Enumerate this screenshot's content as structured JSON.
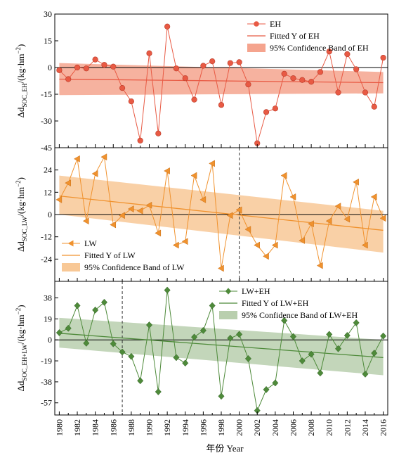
{
  "chart_data": [
    {
      "type": "line",
      "panel": "EH",
      "ylabel_main": "Δd",
      "ylabel_sub": "SOC_EH",
      "ylabel_rest": "/(kg·hm",
      "ylabel_exp": "−2",
      "ylabel_close": ")",
      "ylim": [
        -45,
        30
      ],
      "yticks": [
        "30",
        "15",
        "0",
        "-15",
        "-30",
        "-45"
      ],
      "ytick_values": [
        30,
        15,
        0,
        -15,
        -30,
        -45
      ],
      "marker": "circle",
      "color": "#e85a44",
      "band_color": "#f5a48e",
      "fit": {
        "start": -6.5,
        "end": -8.5
      },
      "band": {
        "upper_start": 2.5,
        "upper_end": -2.5,
        "lower_start": -15.5,
        "lower_end": -14.5
      },
      "vline_year": null,
      "legend": [
        "EH",
        "Fitted Y of EH",
        "95% Confidence Band of EH"
      ],
      "legend_position": "top-right",
      "x": [
        1980,
        1981,
        1982,
        1983,
        1984,
        1985,
        1986,
        1987,
        1988,
        1989,
        1990,
        1991,
        1992,
        1993,
        1994,
        1995,
        1996,
        1997,
        1998,
        1999,
        2000,
        2001,
        2002,
        2003,
        2004,
        2005,
        2006,
        2007,
        2008,
        2009,
        2010,
        2011,
        2012,
        2013,
        2014,
        2015,
        2016
      ],
      "values": [
        -1.5,
        -6.5,
        0,
        -0.5,
        4.5,
        1.5,
        0.5,
        -11.5,
        -19,
        -41,
        8,
        -37,
        23,
        -0.5,
        -6,
        -18,
        1,
        3.5,
        -21,
        2.5,
        3,
        -9.5,
        -42.5,
        -25,
        -23,
        -3.5,
        -6,
        -7,
        -8,
        -2.5,
        9,
        -14,
        7.5,
        -1,
        -14,
        -22,
        5.5
      ]
    },
    {
      "type": "line",
      "panel": "LW",
      "ylabel_main": "Δd",
      "ylabel_sub": "SOC_LW",
      "ylabel_rest": "/(kg·hm",
      "ylabel_exp": "−2",
      "ylabel_close": ")",
      "ylim": [
        -36,
        36
      ],
      "yticks": [
        "24",
        "12",
        "0",
        "-12",
        "-24"
      ],
      "ytick_values": [
        24,
        12,
        0,
        -12,
        -24
      ],
      "marker": "triangle-left",
      "color": "#f0922e",
      "band_color": "#f8c896",
      "fit": {
        "start": 10,
        "end": -8.5
      },
      "band": {
        "upper_start": 21,
        "upper_end": 2,
        "lower_start": 0,
        "lower_end": -20.5
      },
      "vline_year": 2000,
      "legend": [
        "LW",
        "Fitted Y of LW",
        "95% Confidence Band of LW"
      ],
      "legend_position": "bottom-left",
      "x": [
        1980,
        1981,
        1982,
        1983,
        1984,
        1985,
        1986,
        1987,
        1988,
        1989,
        1990,
        1991,
        1992,
        1993,
        1994,
        1995,
        1996,
        1997,
        1998,
        1999,
        2000,
        2001,
        2002,
        2003,
        2004,
        2005,
        2006,
        2007,
        2008,
        2009,
        2010,
        2011,
        2012,
        2013,
        2014,
        2015,
        2016
      ],
      "values": [
        8,
        17,
        30,
        -3.5,
        22,
        31,
        -5.5,
        -0.5,
        3,
        2,
        5,
        -10,
        23.5,
        -16.5,
        -14.5,
        21,
        8,
        27.5,
        -29,
        -0.5,
        2.5,
        -8,
        -16.5,
        -22.5,
        -16.5,
        21,
        9.5,
        -14,
        -5,
        -27.5,
        -3.5,
        4.5,
        -2.5,
        17.5,
        -16.5,
        9.5,
        -2
      ]
    },
    {
      "type": "line",
      "panel": "LW+EH",
      "ylabel_main": "Δd",
      "ylabel_sub": "SOC_EH+LW",
      "ylabel_rest": "/(kg·hm",
      "ylabel_exp": "−2",
      "ylabel_close": ")",
      "ylim": [
        -68,
        53
      ],
      "yticks": [
        "38",
        "19",
        "0",
        "-19",
        "-38",
        "-57"
      ],
      "ytick_values": [
        38,
        19,
        0,
        -19,
        -38,
        -57
      ],
      "marker": "diamond",
      "color": "#4e8a3a",
      "band_color": "#b9cfae",
      "fit": {
        "start": 6,
        "end": -16
      },
      "band": {
        "upper_start": 20,
        "upper_end": 0,
        "lower_start": -7,
        "lower_end": -32
      },
      "vline_year": 1987,
      "legend": [
        "LW+EH",
        "Fitted Y of LW+EH",
        "95% Confidence Band of LW+EH"
      ],
      "legend_position": "top-right",
      "x": [
        1980,
        1981,
        1982,
        1983,
        1984,
        1985,
        1986,
        1987,
        1988,
        1989,
        1990,
        1991,
        1992,
        1993,
        1994,
        1995,
        1996,
        1997,
        1998,
        1999,
        2000,
        2001,
        2002,
        2003,
        2004,
        2005,
        2006,
        2007,
        2008,
        2009,
        2010,
        2011,
        2012,
        2013,
        2014,
        2015,
        2016
      ],
      "values": [
        6.5,
        10.5,
        31,
        -3,
        27,
        34,
        -3.5,
        -11,
        -15,
        -37,
        13.5,
        -47,
        45,
        -16,
        -21,
        2.5,
        8.5,
        31,
        -51,
        1.5,
        5,
        -17,
        -64,
        -45,
        -39,
        17.5,
        3,
        -19,
        -13,
        -30,
        5,
        -8,
        4,
        15.5,
        -31,
        -12,
        3.5
      ]
    }
  ],
  "x_axis": {
    "ticks": [
      "1980",
      "1982",
      "1984",
      "1986",
      "1988",
      "1990",
      "1992",
      "1994",
      "1996",
      "1998",
      "2000",
      "2002",
      "2004",
      "2006",
      "2008",
      "2010",
      "2012",
      "2014",
      "2016"
    ],
    "xlabel": "年份 Year",
    "xlim": [
      1979.5,
      2016.5
    ]
  }
}
